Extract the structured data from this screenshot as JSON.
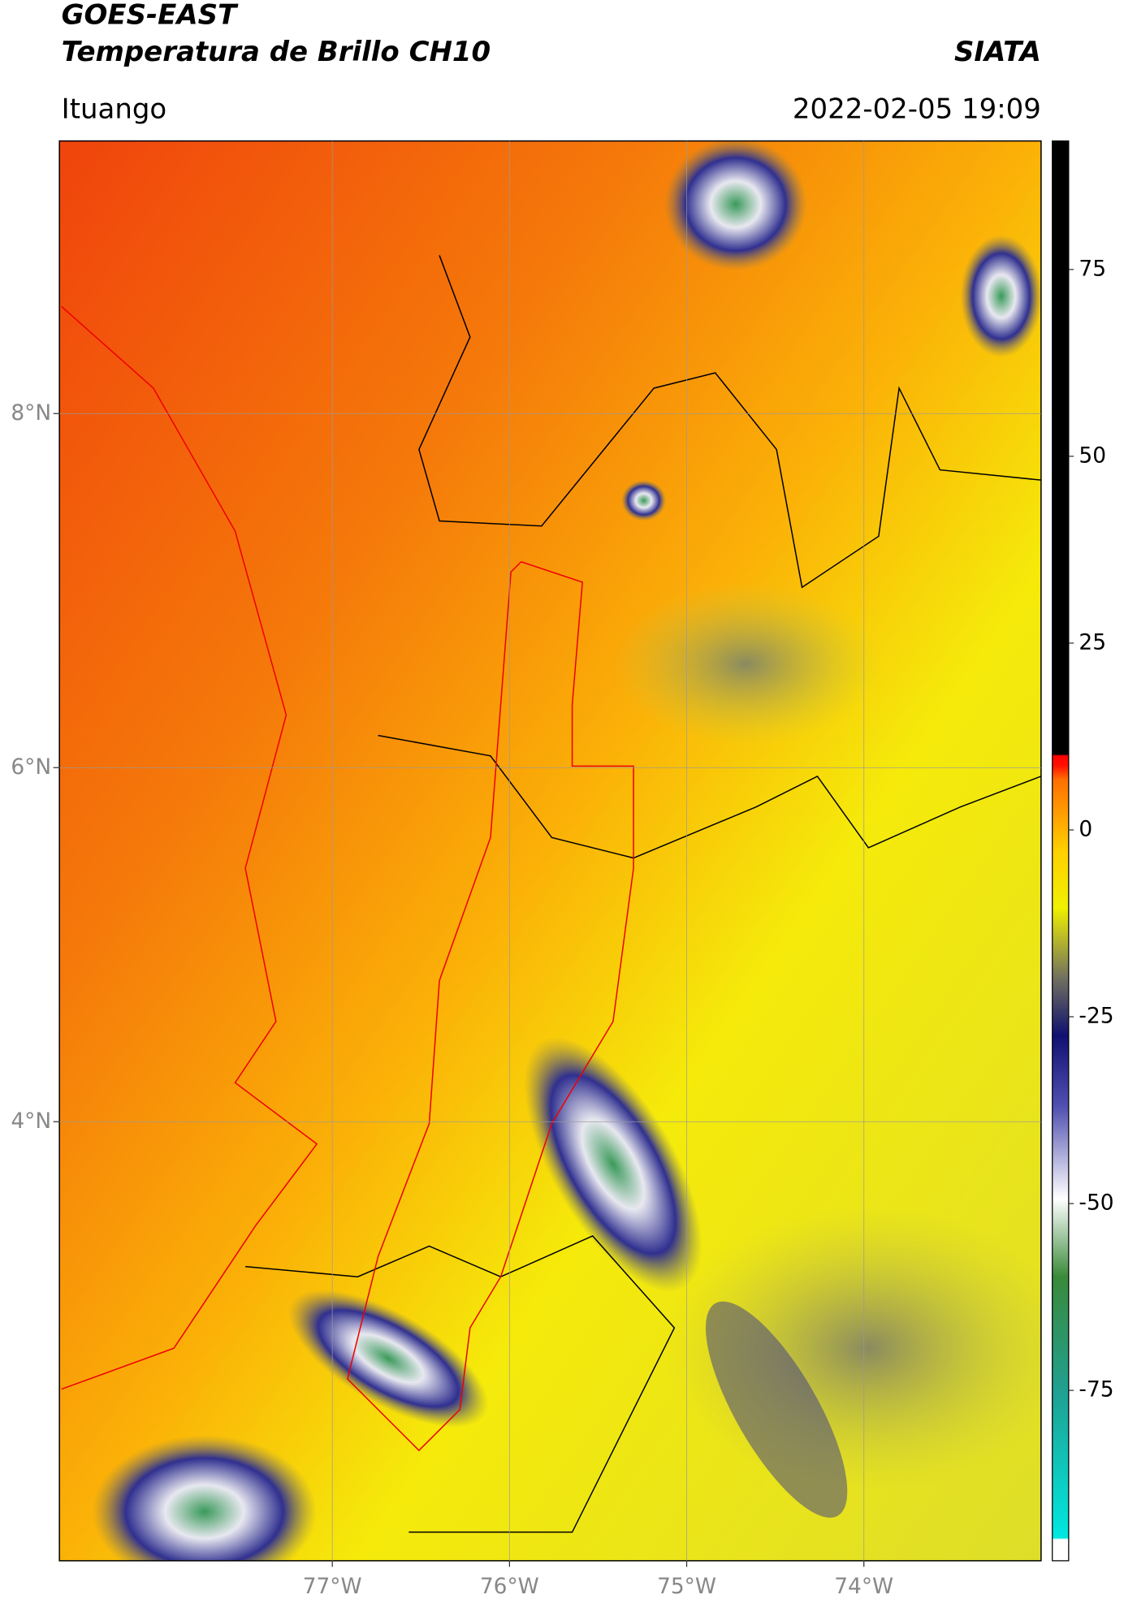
{
  "header": {
    "title": "GOES-EAST",
    "subtitle": "Temperatura de Brillo CH10",
    "brand": "SIATA",
    "location": "Ituango",
    "datetime": "2022-02-05 19:09"
  },
  "map": {
    "lon_range": [
      -78.54,
      -73.0
    ],
    "lat_range": [
      1.52,
      9.54
    ],
    "lat_ticks": [
      {
        "value": 8,
        "label": "8°N"
      },
      {
        "value": 6,
        "label": "6°N"
      },
      {
        "value": 4,
        "label": "4°N"
      }
    ],
    "lon_ticks": [
      {
        "value": -77,
        "label": "77°W"
      },
      {
        "value": -76,
        "label": "76°W"
      },
      {
        "value": -75,
        "label": "75°W"
      },
      {
        "value": -74,
        "label": "74°W"
      }
    ]
  },
  "colorbar": {
    "range": [
      -97.8,
      92.2
    ],
    "ticks": [
      75,
      50,
      25,
      0,
      -25,
      -50,
      -75
    ]
  }
}
